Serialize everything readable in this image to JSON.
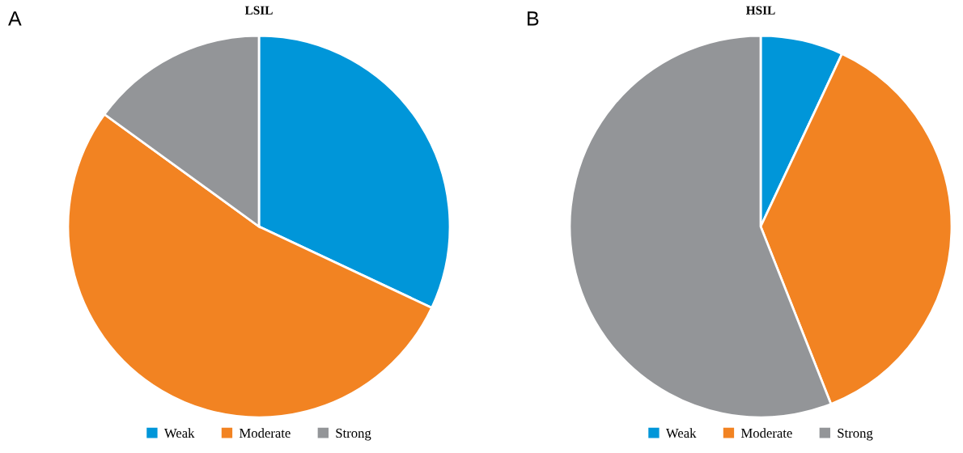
{
  "chart_data": [
    {
      "type": "pie",
      "title": "LSIL",
      "categories": [
        "Weak",
        "Moderate",
        "Strong"
      ],
      "values": [
        32,
        53,
        15
      ],
      "colors": [
        "#0096d9",
        "#f28322",
        "#939598"
      ],
      "legend": "bottom",
      "annotations": [
        "A"
      ]
    },
    {
      "type": "pie",
      "title": "HSIL",
      "categories": [
        "Weak",
        "Moderate",
        "Strong"
      ],
      "values": [
        7,
        37,
        56
      ],
      "colors": [
        "#0096d9",
        "#f28322",
        "#939598"
      ],
      "legend": "bottom",
      "annotations": [
        "B"
      ]
    }
  ]
}
